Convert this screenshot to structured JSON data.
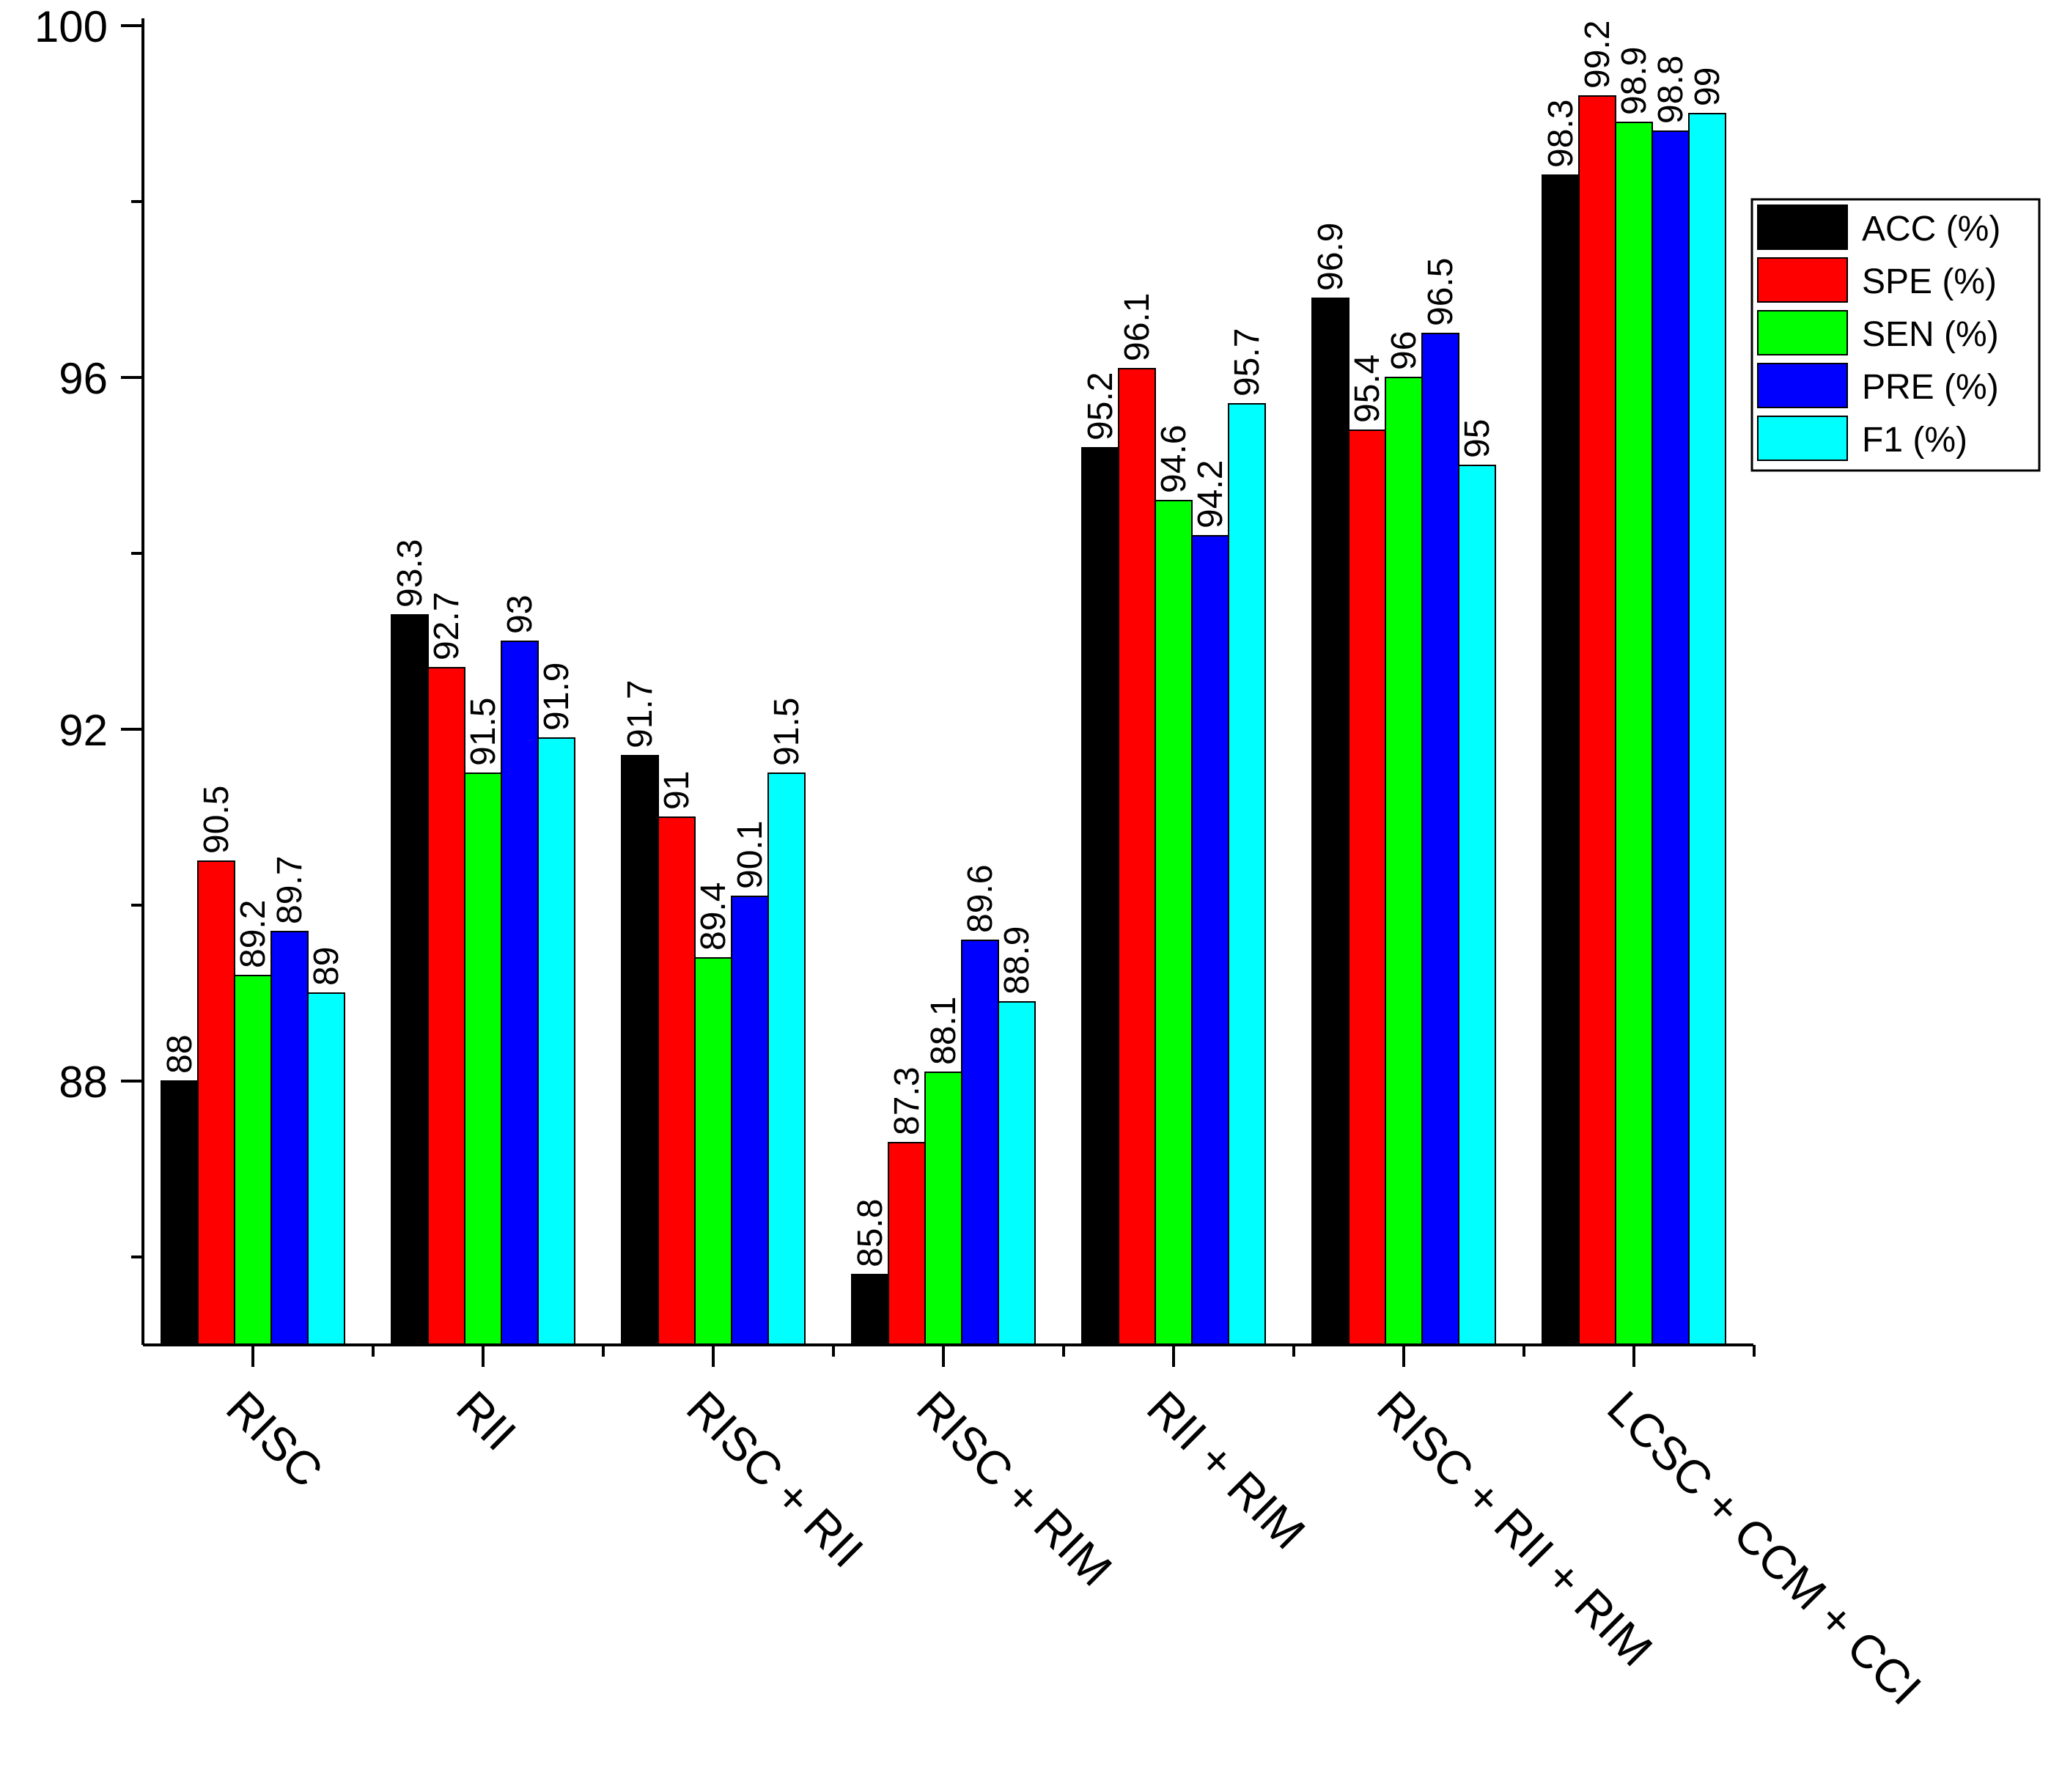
{
  "chart_data": {
    "type": "bar",
    "title": "",
    "xlabel": "",
    "ylabel": "",
    "categories": [
      "RISC",
      "RII",
      "RISC + RII",
      "RISC + RIM",
      "RII + RIM",
      "RISC + RII + RIM",
      "LCSC + CCM + CCI"
    ],
    "series": [
      {
        "name": "ACC (%)",
        "color": "#000000",
        "values": [
          88,
          93.3,
          91.7,
          85.8,
          95.2,
          96.9,
          98.3
        ]
      },
      {
        "name": "SPE (%)",
        "color": "#ff0000",
        "values": [
          90.5,
          92.7,
          91,
          87.3,
          96.1,
          95.4,
          99.2
        ]
      },
      {
        "name": "SEN (%)",
        "color": "#00ff00",
        "values": [
          89.2,
          91.5,
          89.4,
          88.1,
          94.6,
          96,
          98.9
        ]
      },
      {
        "name": "PRE (%)",
        "color": "#0000ff",
        "values": [
          89.7,
          93,
          90.1,
          89.6,
          94.2,
          96.5,
          98.8
        ]
      },
      {
        "name": "F1 (%)",
        "color": "#00ffff",
        "values": [
          89,
          91.9,
          91.5,
          88.9,
          95.7,
          95,
          99
        ]
      }
    ],
    "yticks": [
      88,
      92,
      96,
      100
    ],
    "ylim": [
      85,
      100
    ],
    "grid": false,
    "legend": "top-right"
  }
}
